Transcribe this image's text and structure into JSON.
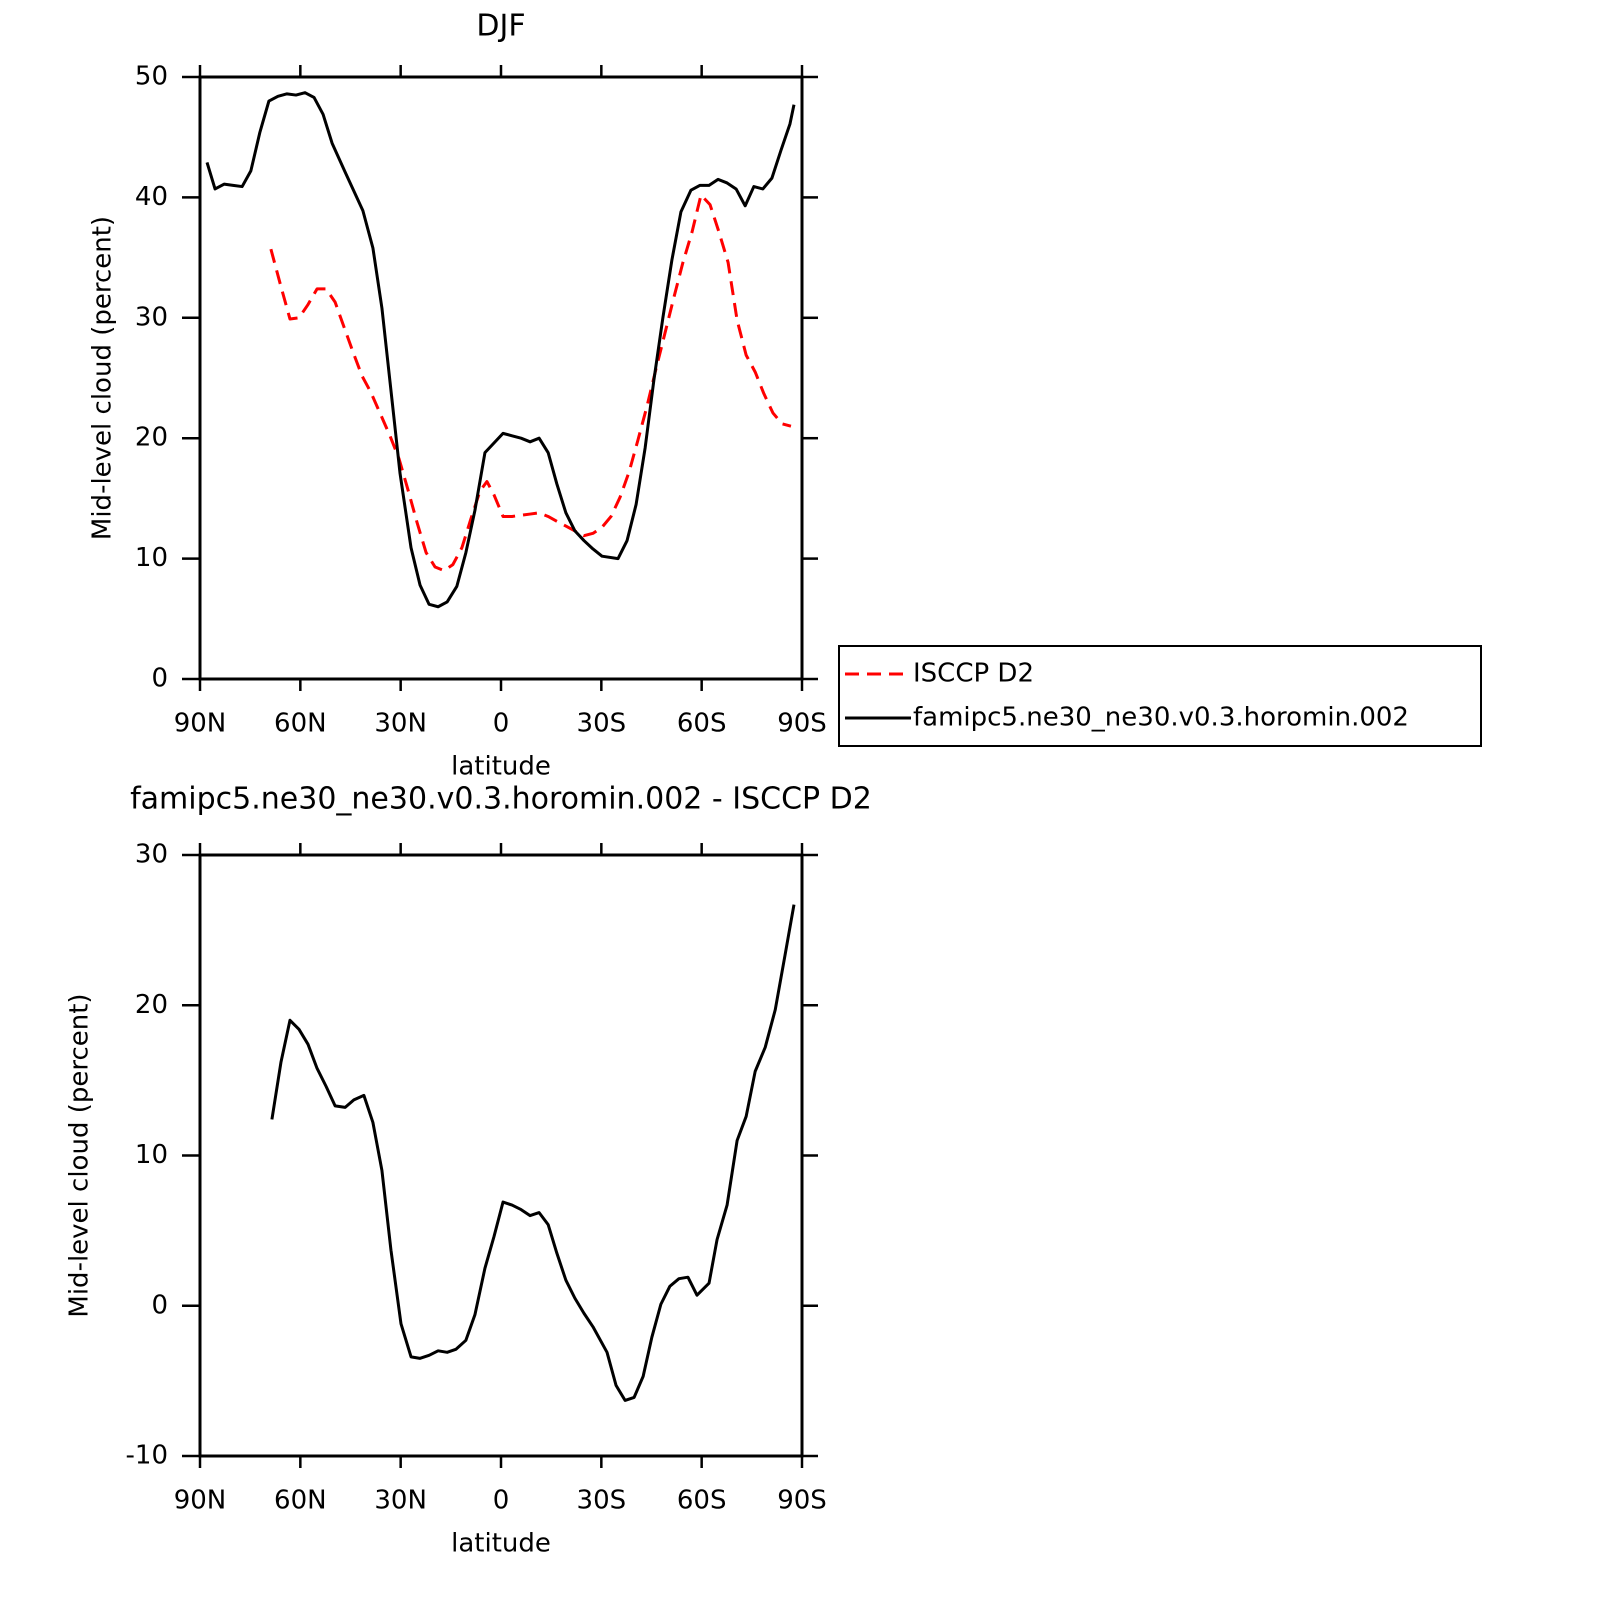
{
  "chart_data": [
    {
      "type": "line",
      "title": "DJF",
      "xlabel": "latitude",
      "ylabel": "Mid-level cloud (percent)",
      "xlim": [
        90,
        -90
      ],
      "ylim": [
        0,
        50
      ],
      "xticks": [
        {
          "value": 90,
          "label": "90N"
        },
        {
          "value": 60,
          "label": "60N"
        },
        {
          "value": 30,
          "label": "30N"
        },
        0,
        {
          "value": -30,
          "label": "30S"
        },
        {
          "value": -60,
          "label": "60S"
        },
        {
          "value": -90,
          "label": "90S"
        }
      ],
      "yticks": [
        0,
        10,
        20,
        30,
        40,
        50
      ],
      "legend": "right",
      "series": [
        {
          "name": "ISCCP D2",
          "color": "#ff0000",
          "style": "dashed",
          "x": [
            68.8,
            65.8,
            63.1,
            60.4,
            57.7,
            55.0,
            52.3,
            49.6,
            46.9,
            44.3,
            41.6,
            38.9,
            36.2,
            33.2,
            30.5,
            27.8,
            25.1,
            22.4,
            19.7,
            17.0,
            14.4,
            11.7,
            9.0,
            6.3,
            4.2,
            2.1,
            -0.6,
            -3.3,
            -6.0,
            -8.7,
            -11.4,
            -14.1,
            -16.7,
            -19.4,
            -22.1,
            -24.8,
            -27.5,
            -30.2,
            -32.9,
            -35.6,
            -38.3,
            -40.9,
            -43.6,
            -46.3,
            -49.0,
            -51.7,
            -54.4,
            -57.1,
            -59.8,
            -62.5,
            -65.2,
            -67.9,
            -70.6,
            -73.3,
            -76.0,
            -78.6,
            -81.3,
            -84.0,
            -86.7
          ],
          "values": [
            35.7,
            32.6,
            29.9,
            30.0,
            31.1,
            32.4,
            32.4,
            31.3,
            29.2,
            27.2,
            25.2,
            23.8,
            22.1,
            20.2,
            18.3,
            15.7,
            13.0,
            10.5,
            9.3,
            9.0,
            9.5,
            10.9,
            13.3,
            15.6,
            16.4,
            15.3,
            13.5,
            13.5,
            13.6,
            13.7,
            13.8,
            13.5,
            13.1,
            12.7,
            12.3,
            11.9,
            12.1,
            12.6,
            13.5,
            15.1,
            17.2,
            19.8,
            22.6,
            25.7,
            28.7,
            31.7,
            34.6,
            37.1,
            40.2,
            39.4,
            37.1,
            34.6,
            29.8,
            26.9,
            25.5,
            23.7,
            22.1,
            21.2,
            21.0
          ]
        },
        {
          "name": "famipc5.ne30_ne30.v0.3.horomin.002",
          "color": "#000000",
          "style": "solid",
          "x": [
            87.9,
            85.5,
            82.8,
            80.1,
            77.4,
            74.8,
            72.1,
            69.4,
            66.7,
            64.0,
            61.3,
            58.6,
            55.9,
            53.2,
            50.5,
            46.6,
            41.3,
            38.3,
            35.6,
            32.6,
            30.2,
            26.9,
            24.2,
            21.5,
            18.8,
            16.1,
            13.2,
            10.5,
            7.8,
            4.8,
            2.1,
            -0.6,
            -3.3,
            -6.0,
            -8.7,
            -11.4,
            -14.1,
            -16.7,
            -19.4,
            -22.1,
            -24.8,
            -27.5,
            -30.2,
            -35.0,
            -37.7,
            -40.4,
            -43.1,
            -45.7,
            -48.4,
            -51.1,
            -53.8,
            -56.8,
            -59.5,
            -62.2,
            -64.9,
            -67.6,
            -70.3,
            -73.0,
            -75.6,
            -78.3,
            -81.0,
            -83.7,
            -86.4,
            -87.6
          ],
          "values": [
            42.9,
            40.7,
            41.1,
            41.0,
            40.9,
            42.2,
            45.4,
            48.0,
            48.4,
            48.6,
            48.5,
            48.7,
            48.3,
            46.9,
            44.5,
            42.1,
            38.9,
            35.8,
            30.8,
            23.2,
            17.1,
            10.9,
            7.8,
            6.2,
            6.0,
            6.4,
            7.7,
            10.5,
            14.0,
            18.8,
            19.6,
            20.4,
            20.2,
            20.0,
            19.7,
            20.0,
            18.8,
            16.2,
            13.8,
            12.3,
            11.5,
            10.8,
            10.2,
            10.0,
            11.5,
            14.5,
            19.2,
            24.8,
            30.0,
            34.8,
            38.8,
            40.6,
            41.0,
            41.0,
            41.5,
            41.2,
            40.7,
            39.3,
            40.9,
            40.7,
            41.6,
            43.9,
            46.1,
            47.7
          ]
        }
      ]
    },
    {
      "type": "line",
      "title": "famipc5.ne30_ne30.v0.3.horomin.002 - ISCCP D2",
      "xlabel": "latitude",
      "ylabel": "Mid-level cloud (percent)",
      "xlim": [
        90,
        -90
      ],
      "ylim": [
        -10,
        30
      ],
      "xticks": [
        {
          "value": 90,
          "label": "90N"
        },
        {
          "value": 60,
          "label": "60N"
        },
        {
          "value": 30,
          "label": "30N"
        },
        0,
        {
          "value": -30,
          "label": "30S"
        },
        {
          "value": -60,
          "label": "60S"
        },
        {
          "value": -90,
          "label": "90S"
        }
      ],
      "yticks": [
        -10,
        0,
        10,
        20,
        30
      ],
      "series": [
        {
          "color": "#000000",
          "style": "solid",
          "x": [
            68.5,
            65.8,
            63.1,
            60.4,
            57.7,
            55.0,
            52.3,
            49.6,
            46.6,
            44.0,
            41.0,
            38.3,
            35.6,
            32.9,
            29.9,
            26.9,
            24.2,
            21.5,
            18.8,
            16.1,
            13.5,
            10.5,
            7.8,
            4.8,
            2.1,
            -0.6,
            -3.3,
            -6.0,
            -8.7,
            -11.4,
            -14.1,
            -16.7,
            -19.4,
            -22.1,
            -24.8,
            -27.5,
            -31.7,
            -34.4,
            -37.1,
            -39.8,
            -42.5,
            -45.1,
            -47.8,
            -50.5,
            -53.2,
            -55.9,
            -58.6,
            -62.2,
            -64.6,
            -67.6,
            -70.6,
            -73.3,
            -76.0,
            -79.0,
            -82.0,
            -84.9,
            -87.6
          ],
          "values": [
            12.4,
            16.2,
            19.0,
            18.4,
            17.4,
            15.8,
            14.6,
            13.3,
            13.2,
            13.7,
            14.0,
            12.2,
            9.0,
            3.7,
            -1.2,
            -3.4,
            -3.5,
            -3.3,
            -3.0,
            -3.1,
            -2.9,
            -2.3,
            -0.6,
            2.5,
            4.6,
            6.9,
            6.7,
            6.4,
            6.0,
            6.2,
            5.4,
            3.5,
            1.7,
            0.5,
            -0.5,
            -1.4,
            -3.1,
            -5.3,
            -6.3,
            -6.1,
            -4.7,
            -2.1,
            0.1,
            1.3,
            1.8,
            1.9,
            0.7,
            1.5,
            4.4,
            6.7,
            11.0,
            12.6,
            15.6,
            17.2,
            19.7,
            23.3,
            26.7
          ]
        }
      ]
    }
  ]
}
